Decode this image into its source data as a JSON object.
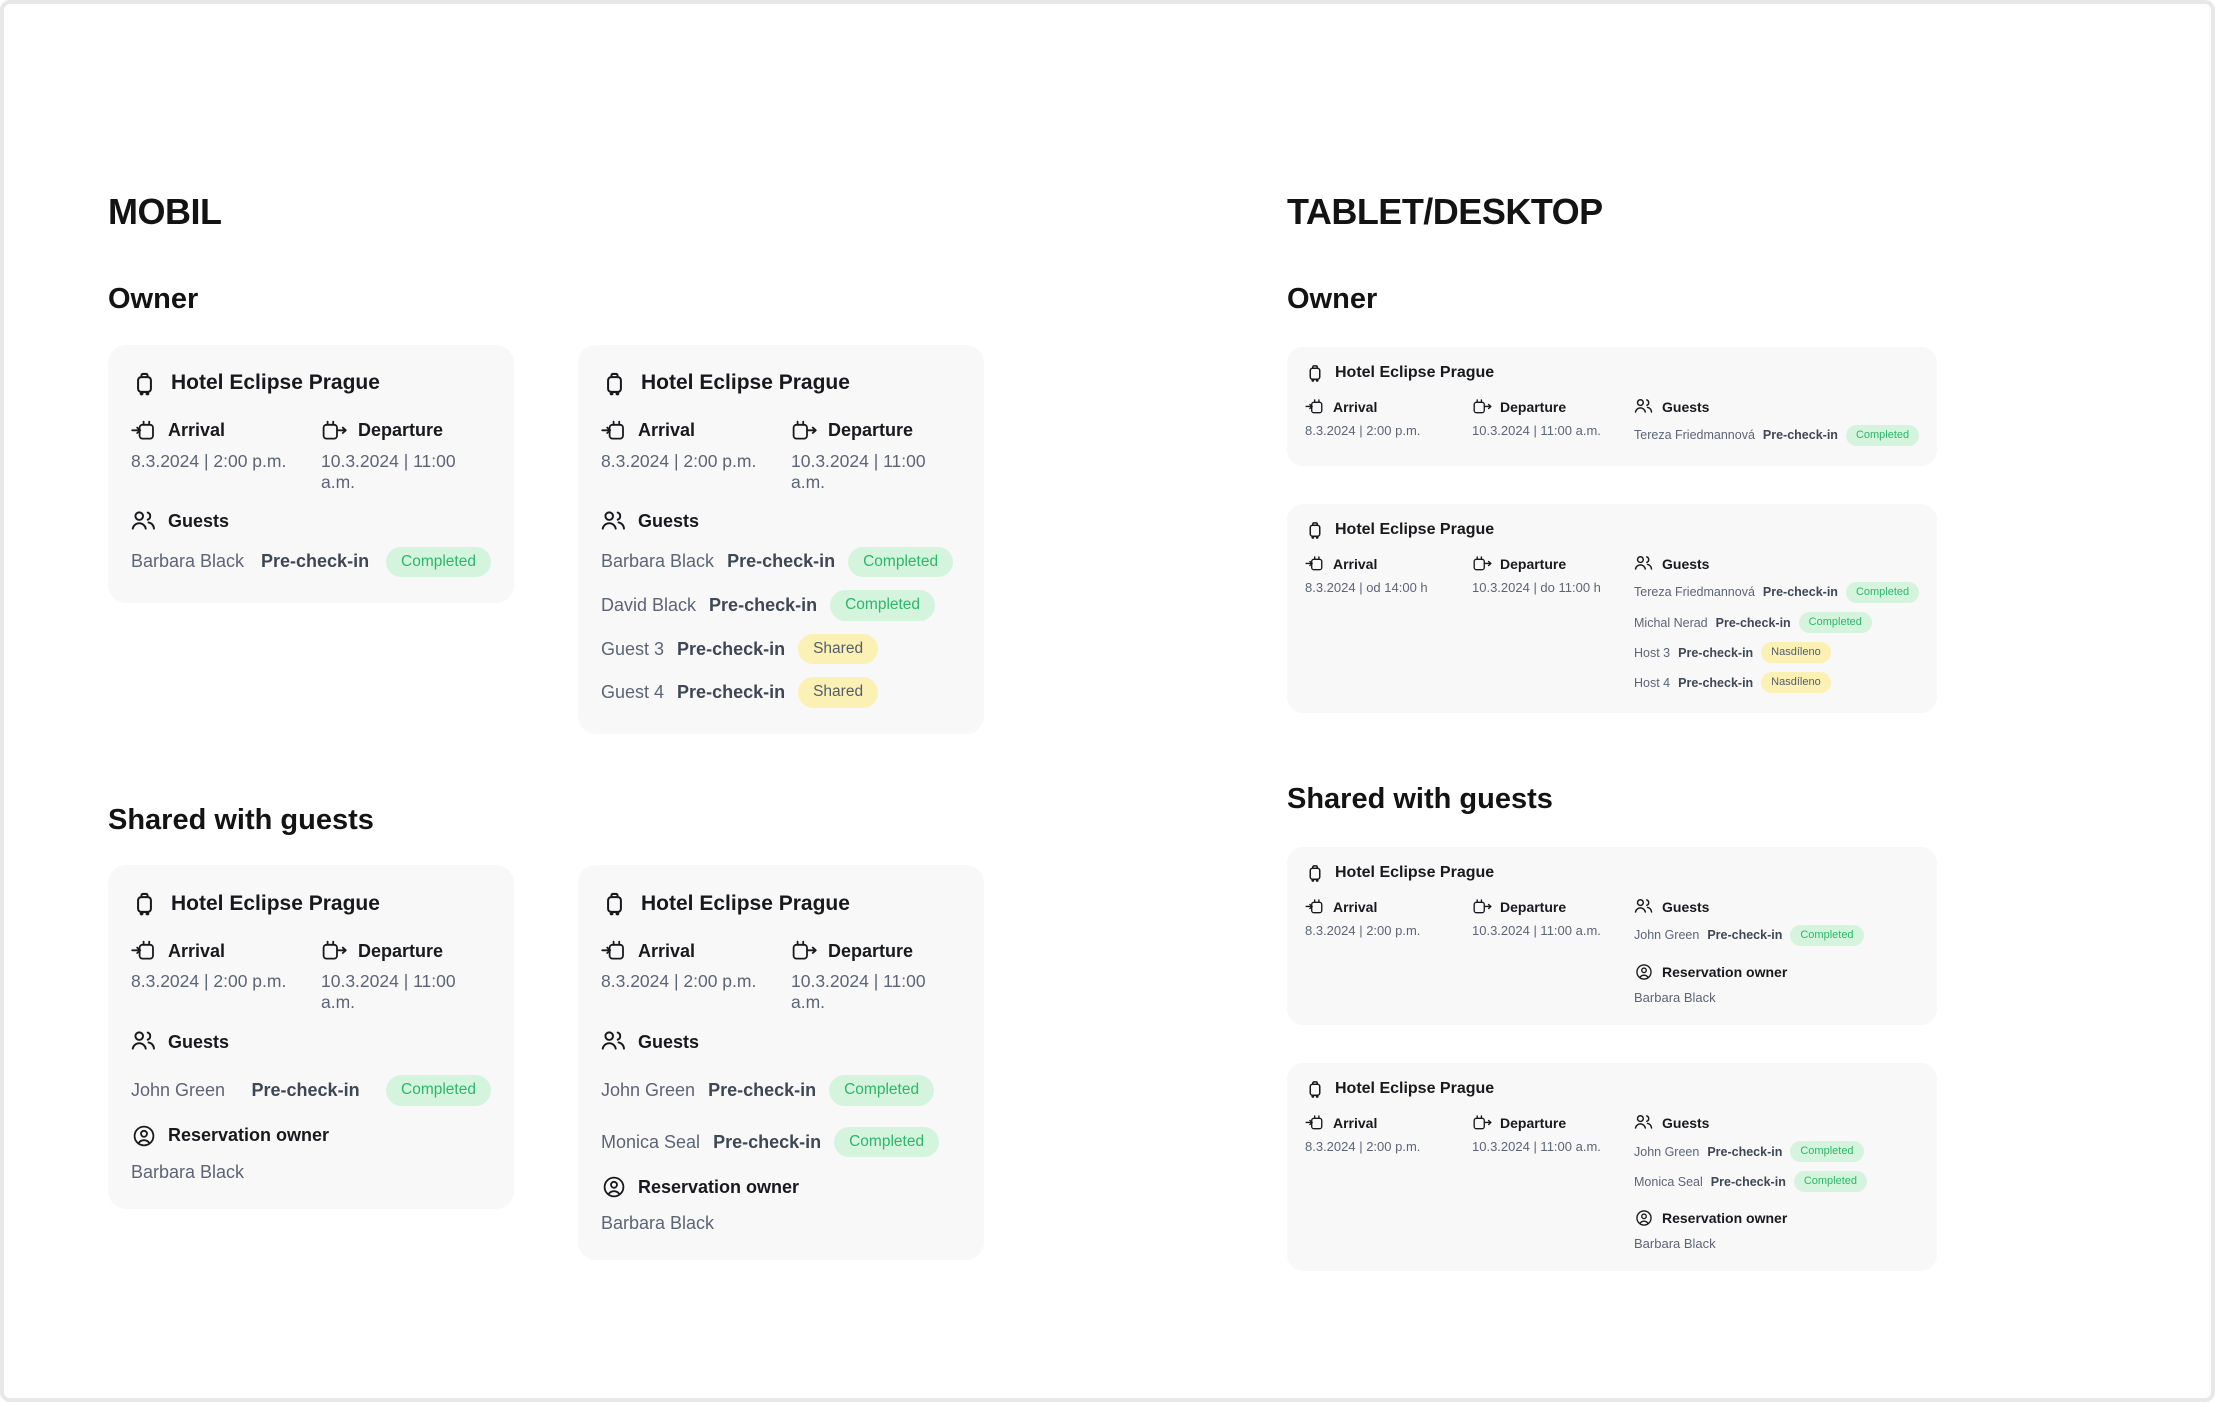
{
  "frame": {
    "border_color": "#e8e8e8",
    "background": "#ffffff",
    "card_background": "#f8f8f9"
  },
  "labels": {
    "arrival": "Arrival",
    "departure": "Departure",
    "guests": "Guests",
    "reservation_owner": "Reservation owner",
    "pre_check_in": "Pre-check-in"
  },
  "badges": {
    "completed": {
      "label": "Completed",
      "bg": "#d5f4de",
      "color": "#2cb669"
    },
    "shared": {
      "label": "Shared",
      "bg": "#fbf1b5",
      "color": "#555d6b"
    },
    "nasdileno": {
      "label": "Nasdíleno",
      "bg": "#fbf1b5",
      "color": "#555d6b"
    }
  },
  "icons": {
    "hotel": "luggage-icon",
    "arrival": "calendar-arrow-in-icon",
    "departure": "calendar-arrow-out-icon",
    "guests": "users-icon",
    "reservation_owner": "circle-user-icon"
  },
  "columns": [
    {
      "id": "mobile",
      "title": "MOBIL",
      "groups": [
        {
          "heading": "Owner",
          "cards": [
            {
              "hotel": "Hotel Eclipse Prague",
              "arrival": "8.3.2024 | 2:00 p.m.",
              "departure": "10.3.2024 | 11:00 a.m.",
              "spread": true,
              "guests": [
                {
                  "name": "Barbara Black",
                  "badge": "completed"
                }
              ]
            },
            {
              "hotel": "Hotel Eclipse Prague",
              "arrival": "8.3.2024 | 2:00 p.m.",
              "departure": "10.3.2024 | 11:00 a.m.",
              "spread": false,
              "guests": [
                {
                  "name": "Barbara Black",
                  "badge": "completed"
                },
                {
                  "name": "David Black",
                  "badge": "completed"
                },
                {
                  "name": "Guest 3",
                  "badge": "shared"
                },
                {
                  "name": "Guest 4",
                  "badge": "shared"
                }
              ]
            }
          ]
        },
        {
          "heading": "Shared with guests",
          "cards": [
            {
              "hotel": "Hotel Eclipse Prague",
              "arrival": "8.3.2024 | 2:00 p.m.",
              "departure": "10.3.2024 | 11:00 a.m.",
              "spread": true,
              "guests": [
                {
                  "name": "John Green",
                  "badge": "completed"
                }
              ],
              "owner": "Barbara Black"
            },
            {
              "hotel": "Hotel Eclipse Prague",
              "arrival": "8.3.2024 | 2:00 p.m.",
              "departure": "10.3.2024 | 11:00 a.m.",
              "spread": false,
              "guests": [
                {
                  "name": "John Green",
                  "badge": "completed"
                },
                {
                  "name": "Monica Seal",
                  "badge": "completed"
                }
              ],
              "owner": "Barbara Black"
            }
          ]
        }
      ]
    },
    {
      "id": "tablet",
      "title": "TABLET/DESKTOP",
      "groups": [
        {
          "heading": "Owner",
          "cards": [
            {
              "hotel": "Hotel Eclipse Prague",
              "arrival": "8.3.2024 | 2:00 p.m.",
              "departure": "10.3.2024 | 11:00 a.m.",
              "guests": [
                {
                  "name": "Tereza Friedmannová",
                  "badge": "completed"
                }
              ]
            },
            {
              "hotel": "Hotel Eclipse Prague",
              "arrival": "8.3.2024 | od 14:00 h",
              "departure": "10.3.2024 | do 11:00 h",
              "guests": [
                {
                  "name": "Tereza Friedmannová",
                  "badge": "completed"
                },
                {
                  "name": "Michal Nerad",
                  "badge": "completed"
                },
                {
                  "name": "Host 3",
                  "badge": "nasdileno"
                },
                {
                  "name": "Host 4",
                  "badge": "nasdileno"
                }
              ]
            }
          ]
        },
        {
          "heading": "Shared with guests",
          "cards": [
            {
              "hotel": "Hotel Eclipse Prague",
              "arrival": "8.3.2024 | 2:00 p.m.",
              "departure": "10.3.2024 | 11:00 a.m.",
              "guests": [
                {
                  "name": "John Green",
                  "badge": "completed"
                }
              ],
              "owner": "Barbara Black"
            },
            {
              "hotel": "Hotel Eclipse Prague",
              "arrival": "8.3.2024 | 2:00 p.m.",
              "departure": "10.3.2024 | 11:00 a.m.",
              "guests": [
                {
                  "name": "John Green",
                  "badge": "completed"
                },
                {
                  "name": "Monica Seal",
                  "badge": "completed"
                }
              ],
              "owner": "Barbara Black"
            }
          ]
        }
      ]
    }
  ]
}
